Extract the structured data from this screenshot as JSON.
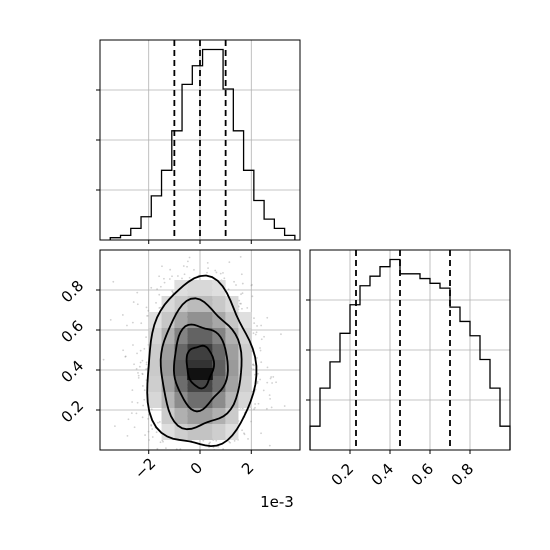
{
  "chart_data": {
    "type": "corner",
    "parameters": [
      {
        "offset_text": "1e-3",
        "xlim": [
          -3.9,
          3.9
        ],
        "xticks": [
          -2,
          0,
          2
        ],
        "xtick_labels": [
          "−2",
          "0",
          "2"
        ],
        "quantiles": [
          -1.0,
          0.0,
          1.0
        ],
        "hist_bins": [
          -3.5,
          -3.1,
          -2.7,
          -2.3,
          -1.9,
          -1.5,
          -1.1,
          -0.7,
          -0.3,
          0.1,
          0.5,
          0.9,
          1.3,
          1.7,
          2.1,
          2.5,
          2.9,
          3.3,
          3.7
        ],
        "hist_counts": [
          1,
          2,
          5,
          10,
          19,
          30,
          47,
          67,
          75,
          82,
          82,
          65,
          47,
          30,
          17,
          9,
          5,
          2
        ]
      },
      {
        "xlim": [
          0.0,
          1.0
        ],
        "xticks": [
          0.2,
          0.4,
          0.6,
          0.8
        ],
        "xtick_labels": [
          "0.2",
          "0.4",
          "0.6",
          "0.8"
        ],
        "quantiles": [
          0.23,
          0.45,
          0.7
        ],
        "hist_bins": [
          0.0,
          0.05,
          0.1,
          0.15,
          0.2,
          0.25,
          0.3,
          0.35,
          0.4,
          0.45,
          0.5,
          0.55,
          0.6,
          0.65,
          0.7,
          0.75,
          0.8,
          0.85,
          0.9,
          0.95,
          1.0
        ],
        "hist_counts": [
          10,
          26,
          37,
          49,
          61,
          69,
          73,
          77,
          80,
          74,
          74,
          72,
          70,
          68,
          60,
          54,
          48,
          38,
          26,
          10
        ],
        "ylim": [
          0.0,
          1.0
        ],
        "yticks": [
          0.2,
          0.4,
          0.6,
          0.8
        ],
        "ytick_labels": [
          "0.2",
          "0.4",
          "0.6",
          "0.8"
        ]
      }
    ],
    "joint_2d": {
      "x_center": 0.0,
      "x_sigma": 1.0,
      "y_center": 0.42,
      "y_sigma": 0.2,
      "contour_levels": [
        "0.5σ",
        "1σ",
        "1.5σ",
        "2σ"
      ]
    },
    "grid": true
  }
}
